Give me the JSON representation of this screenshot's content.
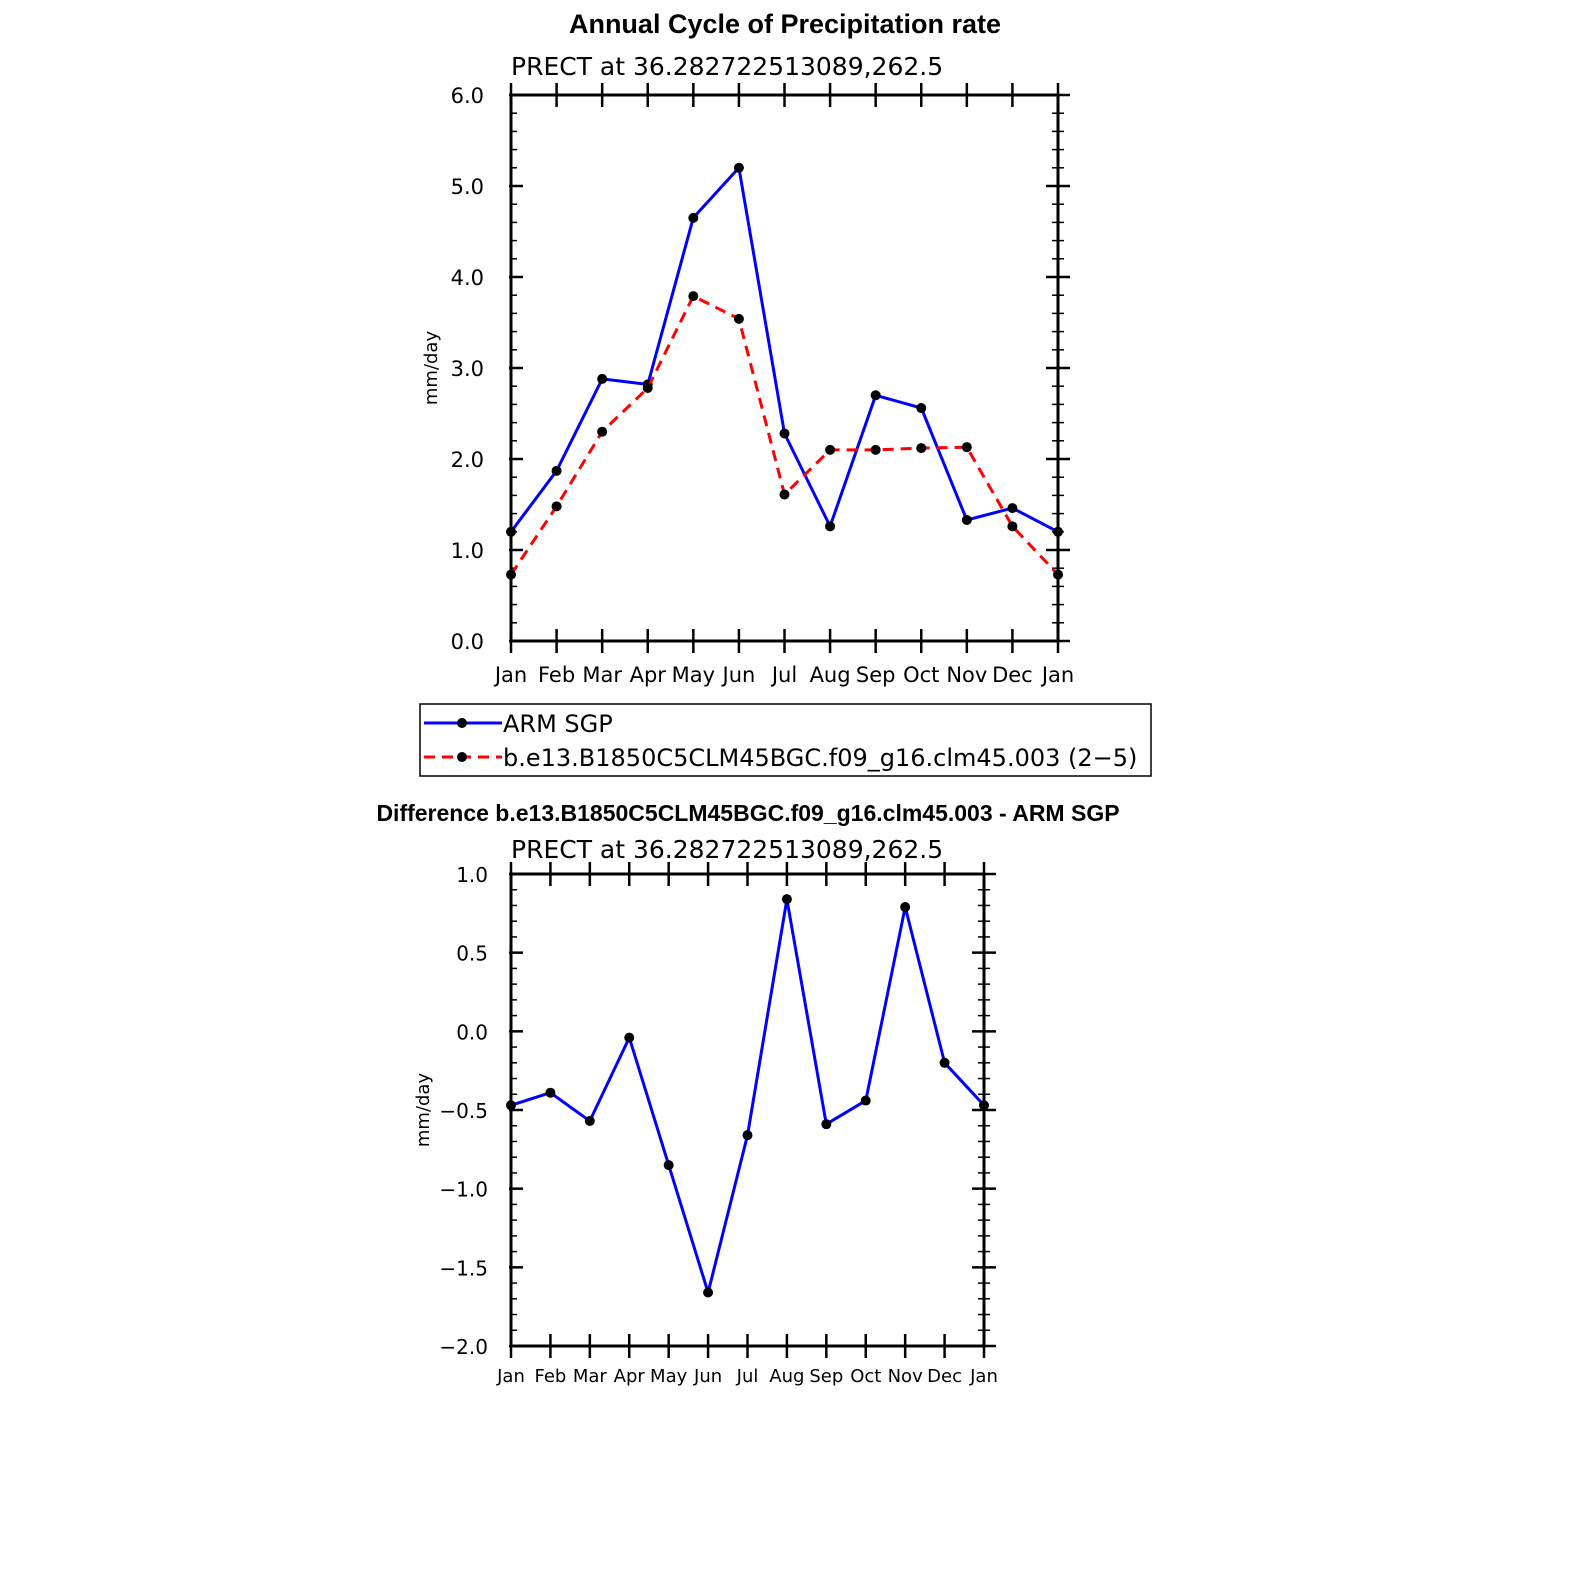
{
  "colors": {
    "obs": "#0000ff",
    "model": "#ff0000",
    "marker": "#000000",
    "axis": "#000000"
  },
  "chart_data": [
    {
      "type": "line",
      "title": "Annual Cycle of Precipitation rate",
      "subtitle": "PRECT at 36.282722513089,262.5",
      "ylabel": "mm/day",
      "xlabel": "",
      "ylim": [
        0,
        6
      ],
      "yticks": [
        0,
        1,
        2,
        3,
        4,
        5,
        6
      ],
      "ytick_labels": [
        "0.0",
        "1.0",
        "2.0",
        "3.0",
        "4.0",
        "5.0",
        "6.0"
      ],
      "categories": [
        "Jan",
        "Feb",
        "Mar",
        "Apr",
        "May",
        "Jun",
        "Jul",
        "Aug",
        "Sep",
        "Oct",
        "Nov",
        "Dec",
        "Jan"
      ],
      "series": [
        {
          "name": "ARM SGP",
          "style": "solid",
          "color": "#0000ff",
          "values": [
            1.2,
            1.87,
            2.88,
            2.82,
            4.65,
            5.2,
            2.28,
            1.26,
            2.7,
            2.56,
            1.33,
            1.46,
            1.2
          ]
        },
        {
          "name": "b.e13.B1850C5CLM45BGC.f09_g16.clm45.003 (2−5)",
          "style": "dashed",
          "color": "#ff0000",
          "values": [
            0.73,
            1.48,
            2.3,
            2.78,
            3.79,
            3.54,
            1.61,
            2.1,
            2.1,
            2.12,
            2.13,
            1.26,
            0.73
          ]
        }
      ],
      "legend": "bottom"
    },
    {
      "type": "line",
      "title": "Difference b.e13.B1850C5CLM45BGC.f09_g16.clm45.003 - ARM SGP",
      "subtitle": "PRECT at 36.282722513089,262.5",
      "ylabel": "mm/day",
      "xlabel": "",
      "ylim": [
        -2,
        1
      ],
      "yticks": [
        -2,
        -1.5,
        -1,
        -0.5,
        0,
        0.5,
        1
      ],
      "ytick_labels": [
        "−2.0",
        "−1.5",
        "−1.0",
        "−0.5",
        "0.0",
        "0.5",
        "1.0"
      ],
      "categories": [
        "Jan",
        "Feb",
        "Mar",
        "Apr",
        "May",
        "Jun",
        "Jul",
        "Aug",
        "Sep",
        "Oct",
        "Nov",
        "Dec",
        "Jan"
      ],
      "series": [
        {
          "name": "Difference",
          "style": "solid",
          "color": "#0000ff",
          "values": [
            -0.47,
            -0.39,
            -0.57,
            -0.04,
            -0.85,
            -1.66,
            -0.66,
            0.84,
            -0.59,
            -0.44,
            0.79,
            -0.2,
            -0.47
          ]
        }
      ]
    }
  ]
}
